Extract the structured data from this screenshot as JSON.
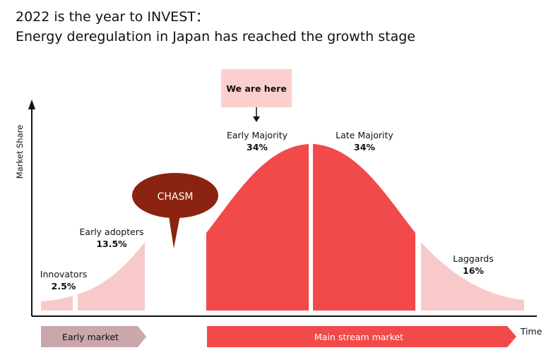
{
  "header": {
    "line1": "2022 is the year to INVEST：",
    "line2": "Energy deregulation in Japan has reached the growth stage"
  },
  "axes": {
    "y_label": "Market Share",
    "x_label": "Time"
  },
  "callout": "We are here",
  "chasm": "CHASM",
  "segments": [
    {
      "name": "Innovators",
      "share": "2.5%"
    },
    {
      "name": "Early adopters",
      "share": "13.5%"
    },
    {
      "name": "Early Majority",
      "share": "34%"
    },
    {
      "name": "Late Majority",
      "share": "34%"
    },
    {
      "name": "Laggards",
      "share": "16%"
    }
  ],
  "phases": [
    "Early market",
    "Main stream market"
  ]
}
